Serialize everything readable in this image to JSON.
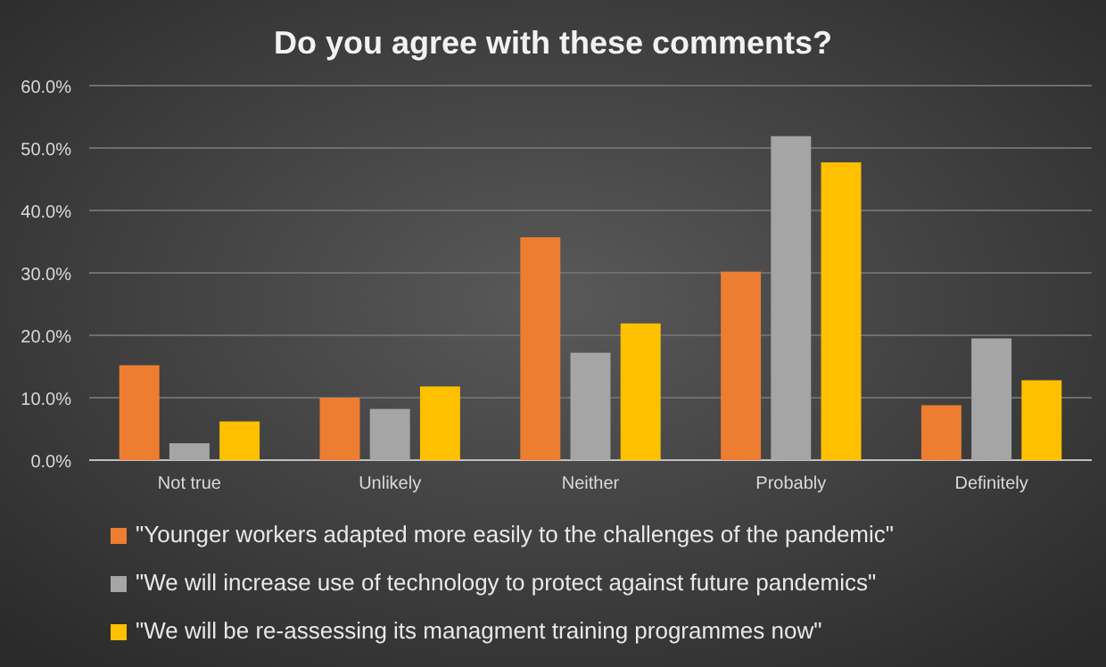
{
  "chart_data": {
    "type": "bar",
    "title": "Do you agree with these comments?",
    "categories": [
      "Not true",
      "Unlikely",
      "Neither",
      "Probably",
      "Definitely"
    ],
    "series": [
      {
        "name": "\"Younger workers adapted more easily to the challenges of the pandemic\"",
        "color": "#ed7d31",
        "values": [
          15.2,
          10.0,
          35.7,
          30.2,
          8.8
        ]
      },
      {
        "name": "\"We will increase use of technology to protect against future pandemics\"",
        "color": "#a5a5a5",
        "values": [
          2.7,
          8.2,
          17.2,
          51.9,
          19.5
        ]
      },
      {
        "name": "\"We will  be re-assessing its managment training programmes now\"",
        "color": "#ffc000",
        "values": [
          6.2,
          11.8,
          21.9,
          47.7,
          12.8
        ]
      }
    ],
    "ylim": [
      0,
      60
    ],
    "yticks": [
      {
        "value": 0,
        "label": "0.0%"
      },
      {
        "value": 10,
        "label": "10.0%"
      },
      {
        "value": 20,
        "label": "20.0%"
      },
      {
        "value": 30,
        "label": "30.0%"
      },
      {
        "value": 40,
        "label": "40.0%"
      },
      {
        "value": 50,
        "label": "50.0%"
      },
      {
        "value": 60,
        "label": "60.0%"
      }
    ],
    "grid": "y",
    "legend": "bottom"
  }
}
